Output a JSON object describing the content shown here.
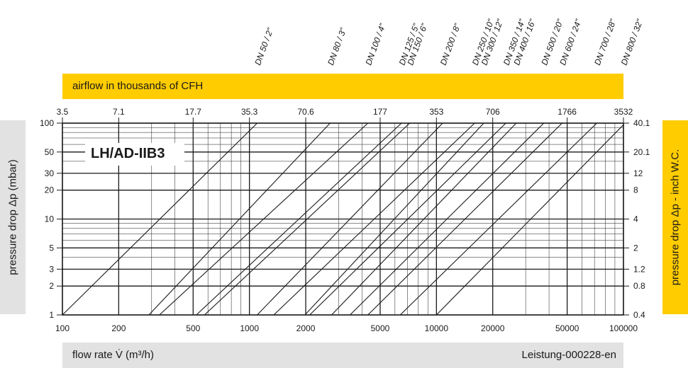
{
  "badge": "LH/AD-IIB3",
  "top_band": "airflow in thousands of CFH",
  "bottom_band": {
    "xlabel": "flow rate V̇ (m³/h)",
    "ref": "Leistung-000228-en"
  },
  "left_label": "pressure drop Δp (mbar)",
  "right_label": "pressure  drop Δp - inch W.C.",
  "chart_data": {
    "type": "line",
    "x_scale": "log",
    "y_scale": "log",
    "xlim": [
      100,
      100000
    ],
    "ylim": [
      1,
      100
    ],
    "xlabel": "flow rate V̇ (m³/h)",
    "ylabel": "pressure drop Δp (mbar)",
    "x_ticks": [
      {
        "value": 100,
        "label": "100"
      },
      {
        "value": 200,
        "label": "200"
      },
      {
        "value": 500,
        "label": "500"
      },
      {
        "value": 1000,
        "label": "1000"
      },
      {
        "value": 2000,
        "label": "2000"
      },
      {
        "value": 5000,
        "label": "5000"
      },
      {
        "value": 10000,
        "label": "10000"
      },
      {
        "value": 20000,
        "label": "20000"
      },
      {
        "value": 50000,
        "label": "50000"
      },
      {
        "value": 100000,
        "label": "100000"
      }
    ],
    "y_ticks": [
      {
        "value": 1,
        "label": "1"
      },
      {
        "value": 2,
        "label": "2"
      },
      {
        "value": 3,
        "label": "3"
      },
      {
        "value": 5,
        "label": "5"
      },
      {
        "value": 10,
        "label": "10"
      },
      {
        "value": 20,
        "label": "20"
      },
      {
        "value": 30,
        "label": "30"
      },
      {
        "value": 50,
        "label": "50"
      },
      {
        "value": 100,
        "label": "100"
      }
    ],
    "x2_ticks": [
      {
        "value": 100,
        "label": "3.5"
      },
      {
        "value": 200,
        "label": "7.1"
      },
      {
        "value": 500,
        "label": "17.7"
      },
      {
        "value": 1000,
        "label": "35.3"
      },
      {
        "value": 2000,
        "label": "70.6"
      },
      {
        "value": 5000,
        "label": "177"
      },
      {
        "value": 10000,
        "label": "353"
      },
      {
        "value": 20000,
        "label": "706"
      },
      {
        "value": 50000,
        "label": "1766"
      },
      {
        "value": 100000,
        "label": "3532"
      }
    ],
    "y2_ticks": [
      {
        "value": 1,
        "label": "0.4"
      },
      {
        "value": 2,
        "label": "0.8"
      },
      {
        "value": 3,
        "label": "1.2"
      },
      {
        "value": 5,
        "label": "2"
      },
      {
        "value": 10,
        "label": "4"
      },
      {
        "value": 20,
        "label": "8"
      },
      {
        "value": 30,
        "label": "12"
      },
      {
        "value": 50,
        "label": "20.1"
      },
      {
        "value": 100,
        "label": "40.1"
      }
    ],
    "series": [
      {
        "name": "DN 50 / 2\"",
        "x": [
          100,
          1100
        ],
        "y": [
          1,
          100
        ]
      },
      {
        "name": "DN 80 / 3\"",
        "x": [
          290,
          2700
        ],
        "y": [
          1,
          100
        ]
      },
      {
        "name": "DN 100 / 4\"",
        "x": [
          330,
          4300
        ],
        "y": [
          1,
          100
        ]
      },
      {
        "name": "DN 125 / 5\"",
        "x": [
          520,
          6500
        ],
        "y": [
          1,
          100
        ]
      },
      {
        "name": "DN 150 / 6\"",
        "x": [
          575,
          7200
        ],
        "y": [
          1,
          100
        ]
      },
      {
        "name": "DN 200 / 8\"",
        "x": [
          1100,
          10800
        ],
        "y": [
          1,
          100
        ]
      },
      {
        "name": "DN 250 / 10\"",
        "x": [
          1350,
          16000
        ],
        "y": [
          1,
          100
        ]
      },
      {
        "name": "DN 300 / 12\"",
        "x": [
          1980,
          17900
        ],
        "y": [
          1,
          100
        ]
      },
      {
        "name": "DN 350 / 14\"",
        "x": [
          2100,
          23500
        ],
        "y": [
          1,
          100
        ]
      },
      {
        "name": "DN 400 / 16\"",
        "x": [
          2750,
          26700
        ],
        "y": [
          1,
          100
        ]
      },
      {
        "name": "DN 500 / 20\"",
        "x": [
          3450,
          37500
        ],
        "y": [
          1,
          100
        ]
      },
      {
        "name": "DN 600 / 24\"",
        "x": [
          4300,
          47000
        ],
        "y": [
          1,
          100
        ]
      },
      {
        "name": "DN 700 / 28\"",
        "x": [
          6400,
          72000
        ],
        "y": [
          1,
          100
        ]
      },
      {
        "name": "DN 800 / 32\"",
        "x": [
          10000,
          102000
        ],
        "y": [
          1,
          100
        ]
      }
    ],
    "top_labels": [
      {
        "label": "DN 50 / 2”",
        "x": 1100
      },
      {
        "label": "DN 80 / 3”",
        "x": 2700
      },
      {
        "label": "DN 100 / 4”",
        "x": 4300
      },
      {
        "label": "DN 125 / 5”",
        "x": 6500
      },
      {
        "label": "DN 150 / 6”",
        "x": 7200
      },
      {
        "label": "DN 200 / 8”",
        "x": 10800
      },
      {
        "label": "DN 250 / 10”",
        "x": 16000
      },
      {
        "label": "DN 300 / 12”",
        "x": 17900
      },
      {
        "label": "DN 350 / 14”",
        "x": 23500
      },
      {
        "label": "DN 400 / 16”",
        "x": 26700
      },
      {
        "label": "DN 500 / 20”",
        "x": 37500
      },
      {
        "label": "DN 600 / 24”",
        "x": 47000
      },
      {
        "label": "DN 700 / 28”",
        "x": 72000
      },
      {
        "label": "DN 800 / 32”",
        "x": 102000
      }
    ]
  }
}
